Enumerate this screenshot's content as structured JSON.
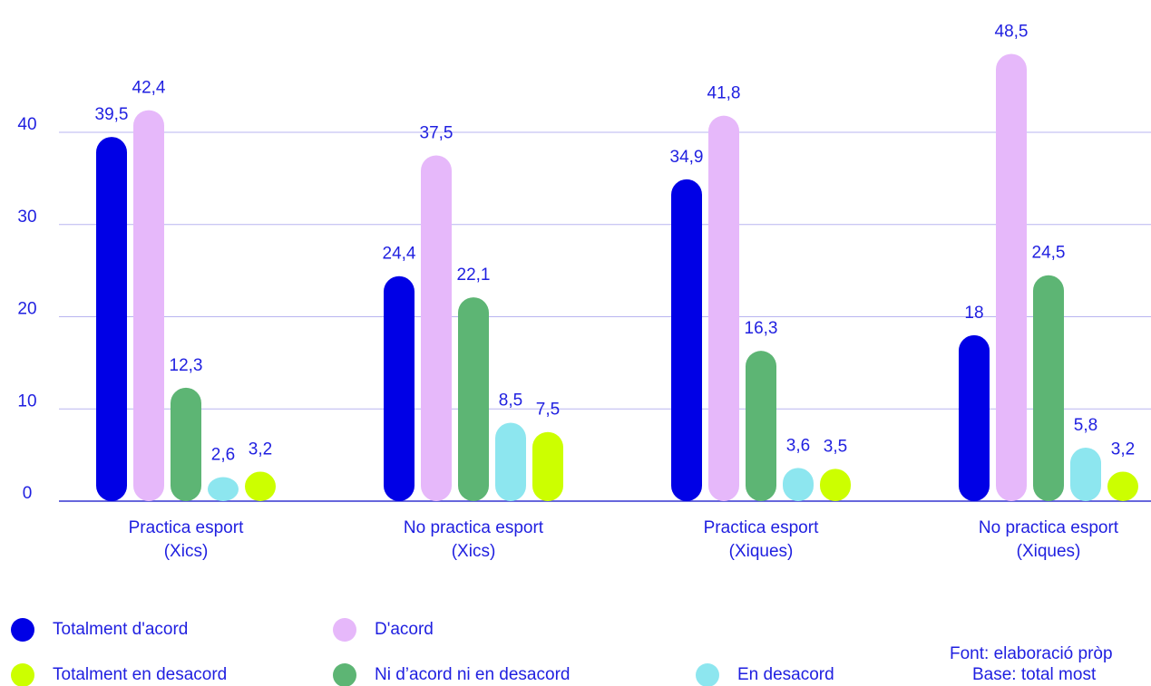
{
  "chart_data": {
    "type": "bar",
    "categories": [
      "Practica esport\n(Xics)",
      "No practica esport\n(Xics)",
      "Practica esport\n(Xiques)",
      "No practica esport\n(Xiques)"
    ],
    "series": [
      {
        "name": "Totalment d'acord",
        "color": "#0000e6",
        "values": [
          39.5,
          24.4,
          34.9,
          18
        ],
        "value_labels": [
          "39,5",
          "24,4",
          "34,9",
          "18"
        ]
      },
      {
        "name": "D'acord",
        "color": "#e6b8fa",
        "values": [
          42.4,
          37.5,
          41.8,
          48.5
        ],
        "value_labels": [
          "42,4",
          "37,5",
          "41,8",
          "48,5"
        ]
      },
      {
        "name": "Ni d’acord ni en desacord",
        "color": "#5db574",
        "values": [
          12.3,
          22.1,
          16.3,
          24.5
        ],
        "value_labels": [
          "12,3",
          "22,1",
          "16,3",
          "24,5"
        ]
      },
      {
        "name": "En desacord",
        "color": "#8de6ef",
        "values": [
          2.6,
          8.5,
          3.6,
          5.8
        ],
        "value_labels": [
          "2,6",
          "8,5",
          "3,6",
          "5,8"
        ]
      },
      {
        "name": "Totalment en desacord",
        "color": "#ccff00",
        "values": [
          3.2,
          7.5,
          3.5,
          3.2
        ],
        "value_labels": [
          "3,2",
          "7,5",
          "3,5",
          "3,2"
        ]
      }
    ],
    "ylim": [
      0,
      50
    ],
    "yticks": [
      0,
      10,
      20,
      30,
      40
    ],
    "grid": true,
    "footnotes": [
      "Font: elaboració pròp",
      "Base: total most"
    ]
  }
}
